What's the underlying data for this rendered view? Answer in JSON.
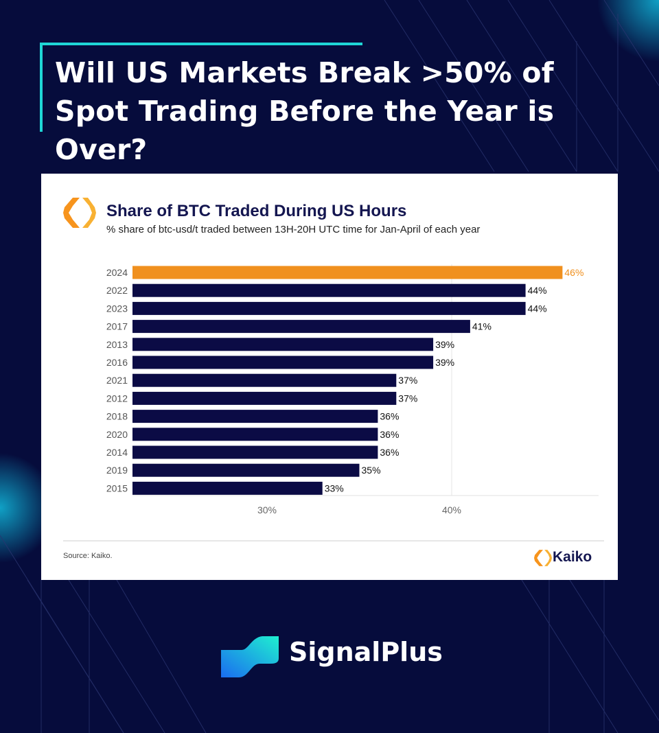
{
  "headline": "Will US Markets Break >50% of Spot Trading Before the Year is Over?",
  "brand": {
    "name": "SignalPlus"
  },
  "card": {
    "source": "Source: Kaiko.",
    "logo_text": "Kaiko"
  },
  "colors": {
    "background": "#060c3c",
    "accent": "#1fd6d6",
    "highlight_bar": "#f0901e",
    "bar": "#0b0b45"
  },
  "chart_data": {
    "type": "bar",
    "orientation": "horizontal",
    "title": "Share of BTC Traded During US Hours",
    "subtitle": "% share of btc-usd/t traded between 13H-20H UTC time for Jan-April of each year",
    "categories": [
      "2024",
      "2022",
      "2023",
      "2017",
      "2013",
      "2016",
      "2021",
      "2012",
      "2018",
      "2020",
      "2014",
      "2019",
      "2015"
    ],
    "values": [
      46,
      44,
      44,
      41,
      39,
      39,
      37,
      37,
      36,
      36,
      36,
      35,
      33
    ],
    "labels": [
      "46%",
      "44%",
      "44%",
      "41%",
      "39%",
      "39%",
      "37%",
      "37%",
      "36%",
      "36%",
      "36%",
      "35%",
      "33%"
    ],
    "highlight": "2024",
    "xlim": [
      22.7,
      53
    ],
    "xticks": [
      30,
      40
    ],
    "xtick_labels": [
      "30%",
      "40%"
    ],
    "grid": "vertical at 40%"
  }
}
